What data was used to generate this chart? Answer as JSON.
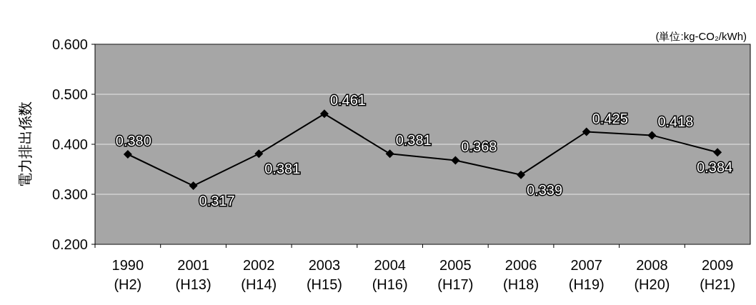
{
  "chart_data": {
    "type": "line",
    "ylabel": "電力排出係数",
    "annotations": [
      "(単位:kg-CO₂/kWh)"
    ],
    "categories": [
      "1990\n(H2)",
      "2001\n(H13)",
      "2002\n(H14)",
      "2003\n(H15)",
      "2004\n(H16)",
      "2005\n(H17)",
      "2006\n(H18)",
      "2007\n(H19)",
      "2008\n(H20)",
      "2009\n(H21)"
    ],
    "series": [
      {
        "color": "#000000",
        "values": [
          0.38,
          0.317,
          0.381,
          0.461,
          0.381,
          0.368,
          0.339,
          0.425,
          0.418,
          0.384
        ],
        "value_labels": [
          "0.380",
          "0.317",
          "0.381",
          "0.461",
          "0.381",
          "0.368",
          "0.339",
          "0.425",
          "0.418",
          "0.384"
        ]
      }
    ],
    "ylim": [
      0.2,
      0.6
    ],
    "yticks": [
      {
        "value": 0.2,
        "label": "0.200"
      },
      {
        "value": 0.3,
        "label": "0.300"
      },
      {
        "value": 0.4,
        "label": "0.400"
      },
      {
        "value": 0.5,
        "label": "0.500"
      },
      {
        "value": 0.6,
        "label": "0.600"
      }
    ],
    "grid": "y",
    "marker": "diamond",
    "line_style": "solid"
  }
}
